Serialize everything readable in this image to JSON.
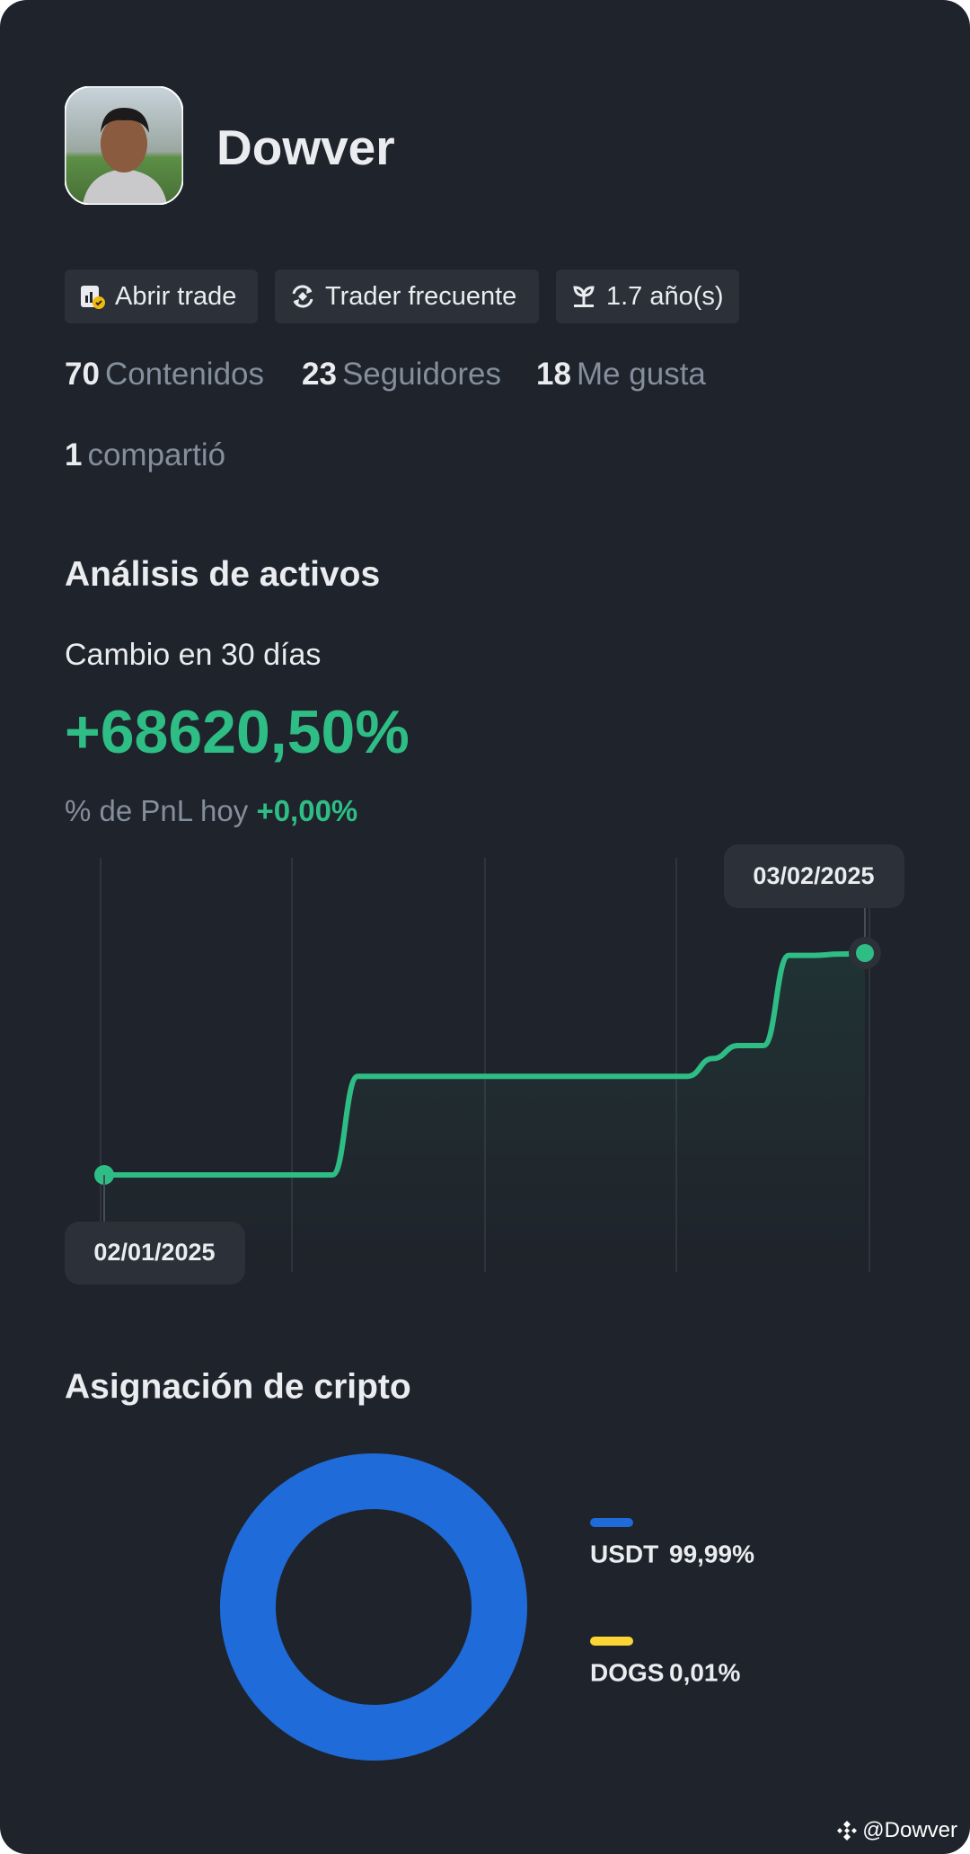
{
  "profile": {
    "name": "Dowver",
    "badges": [
      "Abrir trade",
      "Trader frecuente",
      "1.7 año(s)"
    ],
    "stats": [
      {
        "count": 70,
        "label": "Contenidos"
      },
      {
        "count": 23,
        "label": "Seguidores"
      },
      {
        "count": 18,
        "label": "Me gusta"
      },
      {
        "count": 1,
        "label": "compartió"
      }
    ]
  },
  "section_title": "Análisis de activos",
  "change_label": "Cambio en 30 días",
  "change_value": "+68620,50%",
  "pnl_label": "% de PnL hoy",
  "pnl_value": "+0,00%",
  "chart_data": [
    {
      "type": "line",
      "categories": [
        "02/01/2025",
        null,
        null,
        null,
        null,
        null,
        null,
        null,
        null,
        null,
        null,
        null,
        null,
        null,
        null,
        null,
        null,
        null,
        null,
        null,
        null,
        null,
        null,
        null,
        null,
        null,
        null,
        null,
        null,
        null,
        "03/02/2025"
      ],
      "series": [
        {
          "color": "#2ebd85",
          "values": [
            0,
            0,
            0,
            0,
            0,
            0,
            0,
            0,
            0,
            0,
            30500,
            30500,
            30500,
            30500,
            30500,
            30500,
            30500,
            30500,
            30500,
            30500,
            30500,
            30500,
            30500,
            30500,
            36000,
            40000,
            40000,
            67900,
            67900,
            68300,
            68620.5
          ]
        }
      ]
    },
    {
      "type": "pie",
      "title": "Asignación de cripto",
      "donut": true,
      "categories": [
        "USDT",
        "DOGS"
      ],
      "values": [
        99.99,
        0.01
      ],
      "value_labels": [
        "99,99%",
        "0,01%"
      ],
      "colors": [
        "#1f6bd9",
        "#fcd535"
      ]
    }
  ],
  "watermark": "@Dowver"
}
